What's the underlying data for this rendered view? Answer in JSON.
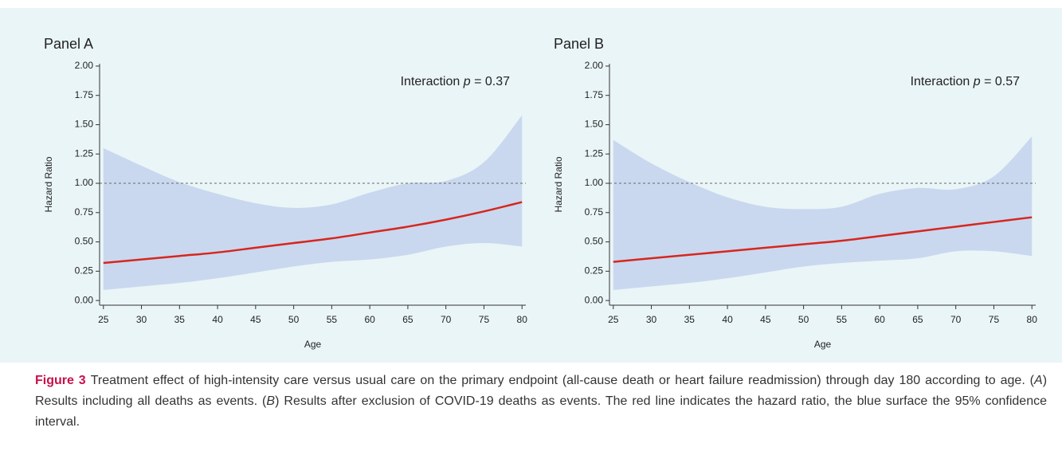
{
  "chart_data": [
    {
      "type": "line",
      "title": "Panel A",
      "xlabel": "Age",
      "ylabel": "Hazard Ratio",
      "annotation": [
        "Interaction ",
        "p",
        " = 0.37"
      ],
      "x": [
        25,
        30,
        35,
        40,
        45,
        50,
        55,
        60,
        65,
        70,
        75,
        80
      ],
      "series": [
        {
          "color": "#d7261e",
          "values": [
            0.32,
            0.35,
            0.38,
            0.41,
            0.45,
            0.49,
            0.53,
            0.58,
            0.63,
            0.69,
            0.76,
            0.84
          ]
        }
      ],
      "band": {
        "color": "#c9d8ee",
        "lower": [
          0.09,
          0.12,
          0.15,
          0.19,
          0.24,
          0.29,
          0.33,
          0.35,
          0.39,
          0.46,
          0.49,
          0.46
        ],
        "upper": [
          1.3,
          1.15,
          1.01,
          0.91,
          0.83,
          0.79,
          0.82,
          0.92,
          1.0,
          1.02,
          1.18,
          1.58
        ]
      },
      "refline": 1,
      "xlim": [
        24.5,
        80.5
      ],
      "ylim": [
        -0.04,
        2.02
      ],
      "xticks": [
        25,
        30,
        35,
        40,
        45,
        50,
        55,
        60,
        65,
        70,
        75,
        80
      ],
      "yticks": [
        {
          "value": 0,
          "label": "0.00"
        },
        {
          "value": 0.25,
          "label": "0.25"
        },
        {
          "value": 0.5,
          "label": "0.50"
        },
        {
          "value": 0.75,
          "label": "0.75"
        },
        {
          "value": 1,
          "label": "1.00"
        },
        {
          "value": 1.25,
          "label": "1.25"
        },
        {
          "value": 1.5,
          "label": "1.50"
        },
        {
          "value": 1.75,
          "label": "1.75"
        },
        {
          "value": 2,
          "label": "2.00"
        }
      ]
    },
    {
      "type": "line",
      "title": "Panel B",
      "xlabel": "Age",
      "ylabel": "Hazard Ratio",
      "annotation": [
        "Interaction ",
        "p",
        " = 0.57"
      ],
      "x": [
        25,
        30,
        35,
        40,
        45,
        50,
        55,
        60,
        65,
        70,
        75,
        80
      ],
      "series": [
        {
          "color": "#d7261e",
          "values": [
            0.33,
            0.36,
            0.39,
            0.42,
            0.45,
            0.48,
            0.51,
            0.55,
            0.59,
            0.63,
            0.67,
            0.71
          ]
        }
      ],
      "band": {
        "color": "#c9d8ee",
        "lower": [
          0.09,
          0.12,
          0.15,
          0.19,
          0.24,
          0.29,
          0.32,
          0.34,
          0.36,
          0.42,
          0.42,
          0.38
        ],
        "upper": [
          1.37,
          1.17,
          1.01,
          0.88,
          0.8,
          0.78,
          0.8,
          0.91,
          0.96,
          0.95,
          1.06,
          1.4
        ]
      },
      "refline": 1,
      "xlim": [
        24.5,
        80.5
      ],
      "ylim": [
        -0.04,
        2.02
      ],
      "xticks": [
        25,
        30,
        35,
        40,
        45,
        50,
        55,
        60,
        65,
        70,
        75,
        80
      ],
      "yticks": [
        {
          "value": 0,
          "label": "0.00"
        },
        {
          "value": 0.25,
          "label": "0.25"
        },
        {
          "value": 0.5,
          "label": "0.50"
        },
        {
          "value": 0.75,
          "label": "0.75"
        },
        {
          "value": 1,
          "label": "1.00"
        },
        {
          "value": 1.25,
          "label": "1.25"
        },
        {
          "value": 1.5,
          "label": "1.50"
        },
        {
          "value": 1.75,
          "label": "1.75"
        },
        {
          "value": 2,
          "label": "2.00"
        }
      ]
    }
  ],
  "caption": {
    "label": "Figure 3",
    "parts": [
      "Treatment effect of high-intensity care versus usual care on the primary endpoint (all-cause death or heart failure readmission) through day 180 according to age. (",
      "A",
      ") Results including all deaths as events. (",
      "B",
      ") Results after exclusion of COVID-19 deaths as events. The red line indicates the hazard ratio, the blue surface the 95% confidence interval."
    ]
  }
}
